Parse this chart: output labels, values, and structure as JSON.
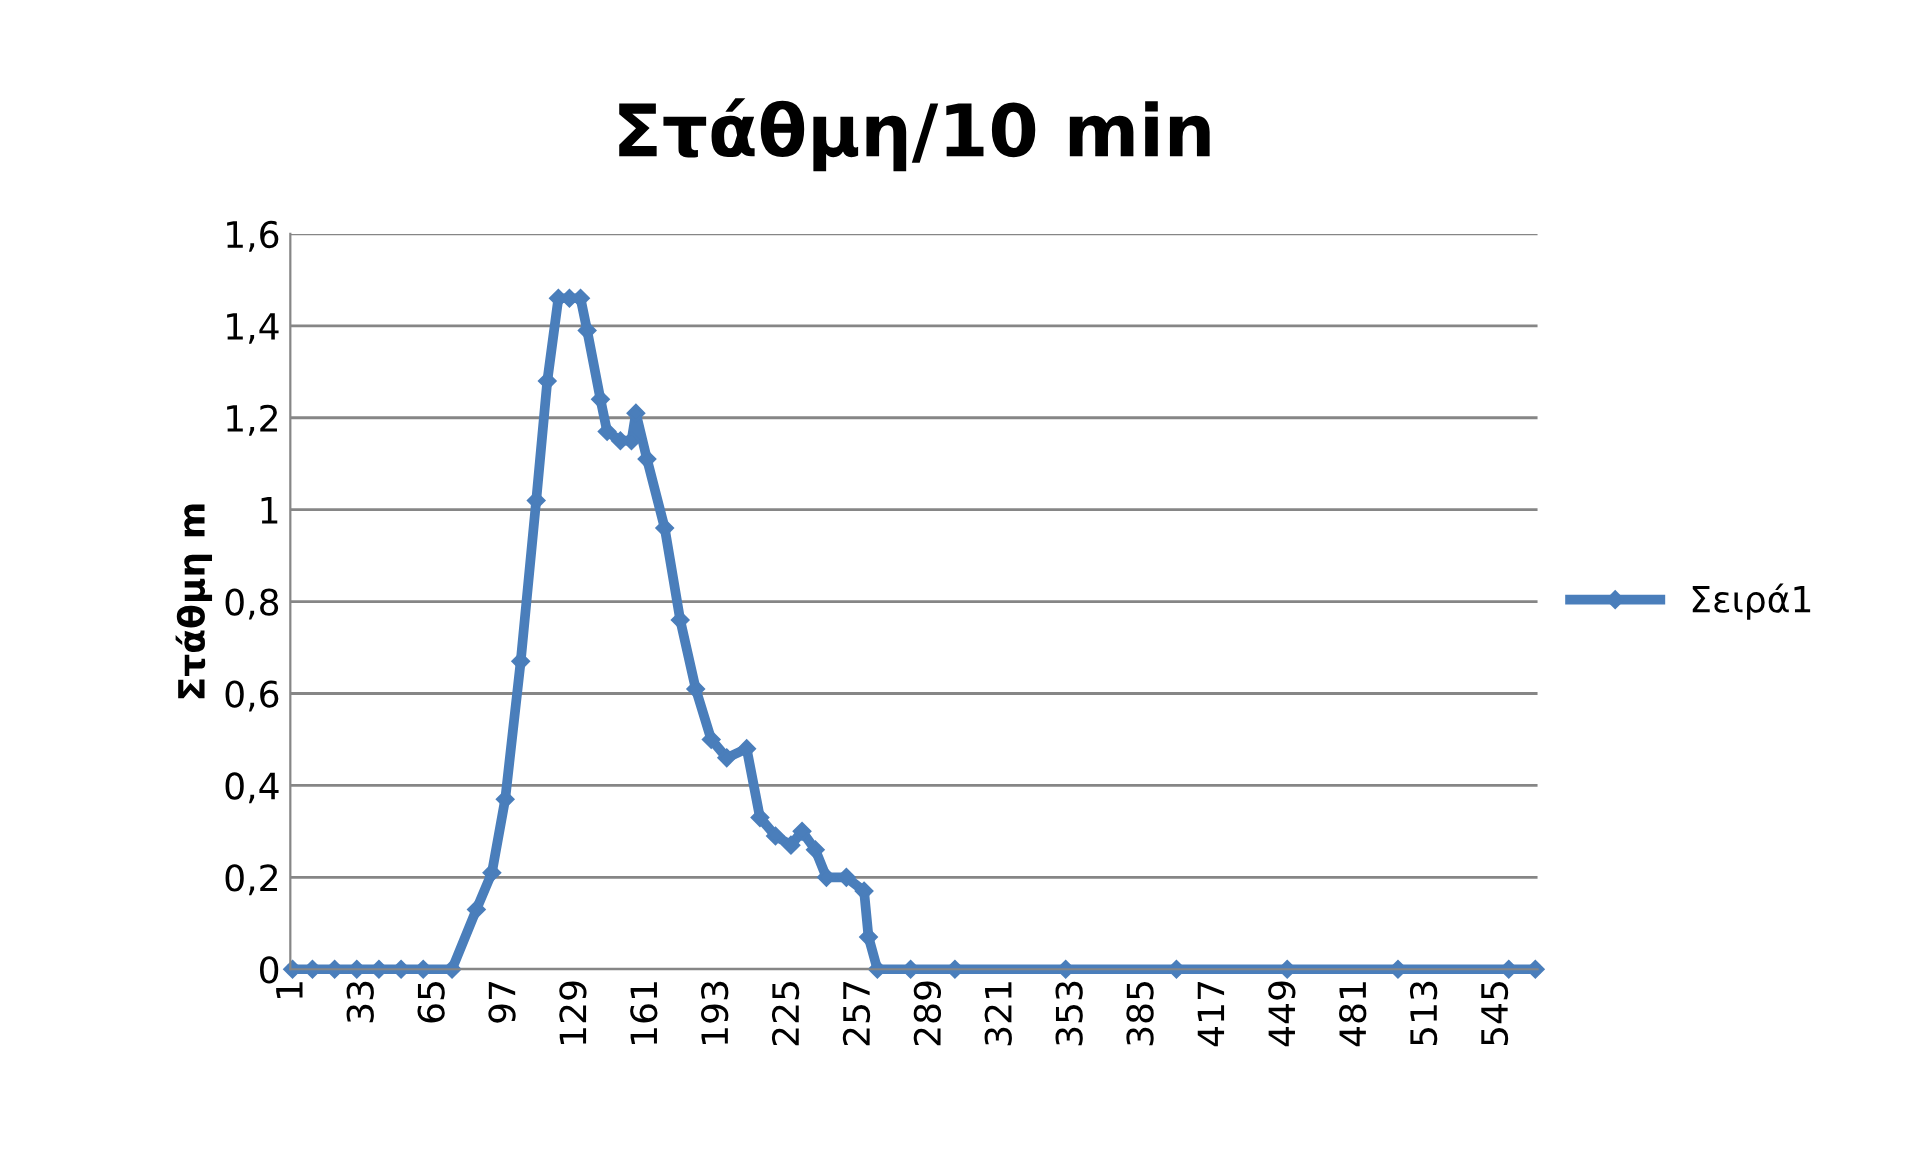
{
  "chart_data": {
    "type": "line",
    "title": "Στάθμη/10 min",
    "ylabel": "Στάθμη m",
    "x": [
      1,
      10,
      20,
      30,
      40,
      50,
      60,
      73,
      84,
      91,
      97,
      104,
      111,
      116,
      121,
      126,
      131,
      134,
      140,
      143,
      149,
      154,
      156,
      161,
      169,
      176,
      183,
      190,
      197,
      206,
      212,
      219,
      226,
      231,
      237,
      242,
      251,
      259,
      261,
      265,
      280,
      300,
      350,
      400,
      450,
      500,
      550,
      562
    ],
    "series": [
      {
        "name": "Σειρά1",
        "color": "#4a7ebb",
        "values": [
          0,
          0,
          0,
          0,
          0,
          0,
          0,
          0,
          0.13,
          0.21,
          0.37,
          0.67,
          1.02,
          1.28,
          1.46,
          1.46,
          1.46,
          1.39,
          1.24,
          1.17,
          1.15,
          1.15,
          1.21,
          1.11,
          0.96,
          0.76,
          0.61,
          0.5,
          0.46,
          0.48,
          0.33,
          0.29,
          0.27,
          0.3,
          0.26,
          0.2,
          0.2,
          0.17,
          0.07,
          0,
          0,
          0,
          0,
          0,
          0,
          0,
          0,
          0
        ]
      }
    ],
    "xlim": [
      0,
      563
    ],
    "xticks": [
      1,
      33,
      65,
      97,
      129,
      161,
      193,
      225,
      257,
      289,
      321,
      353,
      385,
      417,
      449,
      481,
      513,
      545
    ],
    "ylim": [
      0,
      1.6
    ],
    "yticks": [
      0,
      {
        "value": 0.2,
        "label": "0,2"
      },
      {
        "value": 0.4,
        "label": "0,4"
      },
      {
        "value": 0.6,
        "label": "0,6"
      },
      {
        "value": 0.8,
        "label": "0,8"
      },
      1,
      {
        "value": 1.2,
        "label": "1,2"
      },
      {
        "value": 1.4,
        "label": "1,4"
      },
      {
        "value": 1.6,
        "label": "1,6"
      }
    ],
    "grid": "y",
    "legend": "right",
    "marker": "diamond",
    "line_style": "solid"
  }
}
